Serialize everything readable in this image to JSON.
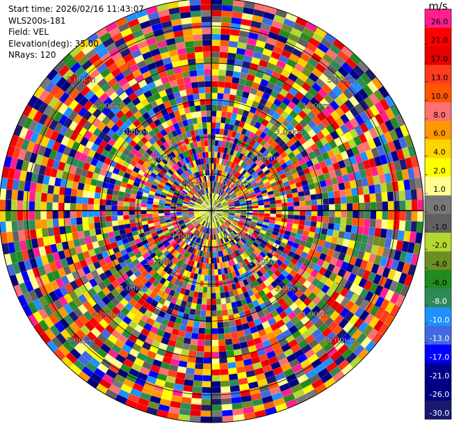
{
  "header": {
    "start_time": "Start time: 2026/02/16 11:43:07",
    "instrument": "WLS200s-181",
    "field": "Field: VEL",
    "elevation": "Elevation(deg): 35.00",
    "nrays": "NRays: 120"
  },
  "chart_data": {
    "type": "ppi",
    "field": "VEL",
    "units": "m/s",
    "n_rays": 120,
    "range_ring_labels": [
      "1.00km",
      "2.00km",
      "3.00km",
      "4.00km",
      "5.00km"
    ],
    "range_rings_km": [
      1,
      2,
      3,
      4,
      5
    ],
    "colorbar": {
      "label": "m/s",
      "tick_labels": [
        "26.0",
        "21.0",
        "17.0",
        "13.0",
        "10.0",
        "8.0",
        "6.0",
        "4.0",
        "2.0",
        "1.0",
        "0.0",
        "-1.0",
        "-2.0",
        "-4.0",
        "-6.0",
        "-8.0",
        "-10.0",
        "-13.0",
        "-17.0",
        "-21.0",
        "-26.0",
        "-30.0"
      ],
      "colors": [
        "#ff1f8f",
        "#ff0000",
        "#e60000",
        "#ff3c1e",
        "#ff5500",
        "#ff7070",
        "#ff9900",
        "#ffd500",
        "#ffff00",
        "#ffff90",
        "#777777",
        "#606060",
        "#b4d832",
        "#6b8e23",
        "#228b22",
        "#2e8b57",
        "#1e90ff",
        "#4169e1",
        "#0000ff",
        "#00008b",
        "#000080",
        "#191970"
      ]
    }
  }
}
